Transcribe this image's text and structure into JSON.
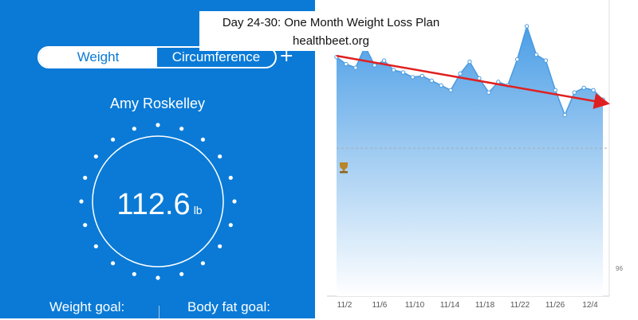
{
  "banner": {
    "title": "Day 24-30: One Month Weight Loss Plan",
    "subtitle": "healthbeet.org"
  },
  "app": {
    "tabs": [
      {
        "label": "Weight",
        "active": true
      },
      {
        "label": "Circumference",
        "active": false
      }
    ],
    "add_symbol": "+",
    "user_name": "Amy Roskelley",
    "weight_value": "112.6",
    "weight_unit": "lb",
    "weight_goal_label": "Weight goal:",
    "body_fat_goal_label": "Body fat goal:",
    "colors": {
      "primary": "#0a7ad6",
      "text": "#ffffff"
    }
  },
  "chart_data": {
    "type": "area",
    "x_tick_labels": [
      "11/2",
      "11/6",
      "11/10",
      "11/14",
      "11/18",
      "11/22",
      "11/26",
      "12/4"
    ],
    "y_tick_labels": [
      "96"
    ],
    "y_range_lb": [
      96,
      119
    ],
    "goal_line_lb": 108.5,
    "goal_icon": "trophy-icon",
    "series": [
      {
        "values": [
          116.2,
          115.6,
          115.3,
          117.1,
          115.5,
          115.9,
          115.1,
          114.9,
          114.5,
          114.6,
          114.2,
          113.8,
          113.4,
          114.8,
          115.8,
          114.4,
          113.2,
          114.1,
          113.8,
          116.0,
          118.8,
          116.4,
          115.9,
          113.4,
          111.3,
          113.2,
          113.6,
          113.4,
          112.6
        ]
      }
    ],
    "trend": {
      "from_lb": 116.3,
      "to_lb": 112.3,
      "color": "#e02020"
    },
    "colors": {
      "line": "#4a9be0",
      "fill_top": "#5aa6e6",
      "fill_bottom": "#ffffff",
      "goal": "#aaaaaa"
    }
  }
}
